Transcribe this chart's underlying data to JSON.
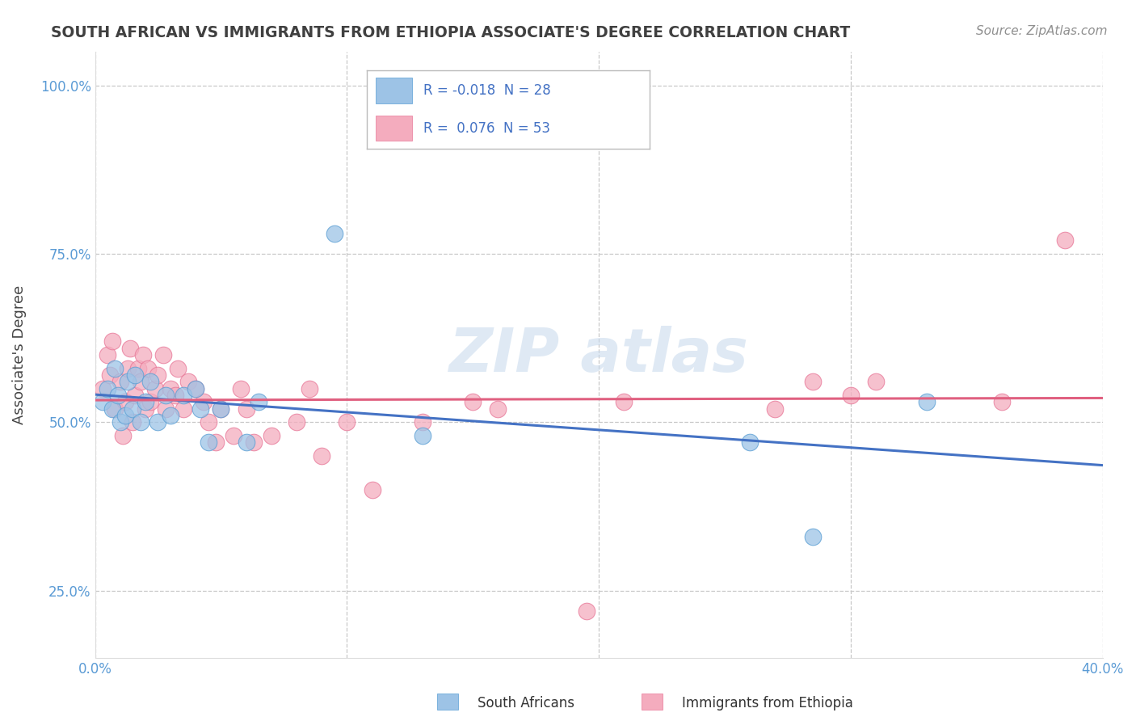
{
  "title": "SOUTH AFRICAN VS IMMIGRANTS FROM ETHIOPIA ASSOCIATE'S DEGREE CORRELATION CHART",
  "source": "Source: ZipAtlas.com",
  "ylabel": "Associate's Degree",
  "xlim": [
    0.0,
    0.4
  ],
  "ylim": [
    0.15,
    1.05
  ],
  "xticks": [
    0.0,
    0.1,
    0.2,
    0.3,
    0.4
  ],
  "xticklabels": [
    "0.0%",
    "",
    "",
    "",
    "40.0%"
  ],
  "yticks": [
    0.25,
    0.5,
    0.75,
    1.0
  ],
  "yticklabels": [
    "25.0%",
    "50.0%",
    "75.0%",
    "100.0%"
  ],
  "south_africans_x": [
    0.003,
    0.005,
    0.007,
    0.008,
    0.009,
    0.01,
    0.012,
    0.013,
    0.015,
    0.016,
    0.018,
    0.02,
    0.022,
    0.025,
    0.028,
    0.03,
    0.035,
    0.04,
    0.042,
    0.045,
    0.05,
    0.06,
    0.065,
    0.095,
    0.13,
    0.26,
    0.285,
    0.33
  ],
  "south_africans_y": [
    0.53,
    0.55,
    0.52,
    0.58,
    0.54,
    0.5,
    0.51,
    0.56,
    0.52,
    0.57,
    0.5,
    0.53,
    0.56,
    0.5,
    0.54,
    0.51,
    0.54,
    0.55,
    0.52,
    0.47,
    0.52,
    0.47,
    0.53,
    0.78,
    0.48,
    0.47,
    0.33,
    0.53
  ],
  "ethiopia_x": [
    0.003,
    0.005,
    0.006,
    0.007,
    0.008,
    0.01,
    0.011,
    0.012,
    0.013,
    0.014,
    0.015,
    0.016,
    0.017,
    0.018,
    0.019,
    0.02,
    0.021,
    0.022,
    0.024,
    0.025,
    0.027,
    0.028,
    0.03,
    0.032,
    0.033,
    0.035,
    0.037,
    0.04,
    0.043,
    0.045,
    0.048,
    0.05,
    0.055,
    0.058,
    0.06,
    0.063,
    0.07,
    0.08,
    0.085,
    0.09,
    0.1,
    0.11,
    0.13,
    0.15,
    0.16,
    0.195,
    0.21,
    0.27,
    0.285,
    0.3,
    0.31,
    0.36,
    0.385
  ],
  "ethiopia_y": [
    0.55,
    0.6,
    0.57,
    0.62,
    0.52,
    0.56,
    0.48,
    0.53,
    0.58,
    0.61,
    0.5,
    0.54,
    0.58,
    0.56,
    0.6,
    0.52,
    0.58,
    0.53,
    0.55,
    0.57,
    0.6,
    0.52,
    0.55,
    0.54,
    0.58,
    0.52,
    0.56,
    0.55,
    0.53,
    0.5,
    0.47,
    0.52,
    0.48,
    0.55,
    0.52,
    0.47,
    0.48,
    0.5,
    0.55,
    0.45,
    0.5,
    0.4,
    0.5,
    0.53,
    0.52,
    0.22,
    0.53,
    0.52,
    0.56,
    0.54,
    0.56,
    0.53,
    0.77
  ],
  "sa_color": "#9dc3e6",
  "eth_color": "#f4acbe",
  "sa_edge_color": "#5a9fd4",
  "eth_edge_color": "#e87898",
  "sa_line_color": "#4472c4",
  "eth_line_color": "#e06080",
  "watermark_color": "#c5d8ec",
  "background_color": "#ffffff",
  "grid_color": "#c8c8c8",
  "tick_color": "#5b9bd5",
  "title_color": "#404040",
  "source_color": "#909090",
  "legend_text_color": "#4472c4"
}
